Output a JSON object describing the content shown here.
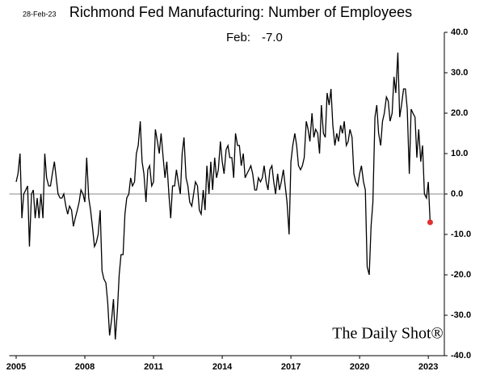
{
  "chart_data": {
    "type": "line",
    "title": "Richmond Fed Manufacturing: Number of Employees",
    "date_label": "28-Feb-23",
    "annotation": {
      "label": "Feb:",
      "value": "-7.0"
    },
    "watermark": "The Daily Shot®",
    "color": "#000000",
    "last_point_color": "#e03030",
    "x": [
      2005,
      2005.08,
      2005.17,
      2005.25,
      2005.33,
      2005.42,
      2005.5,
      2005.58,
      2005.67,
      2005.75,
      2005.83,
      2005.92,
      2006,
      2006.08,
      2006.17,
      2006.25,
      2006.33,
      2006.42,
      2006.5,
      2006.58,
      2006.67,
      2006.75,
      2006.83,
      2006.92,
      2007,
      2007.08,
      2007.17,
      2007.25,
      2007.33,
      2007.42,
      2007.5,
      2007.58,
      2007.67,
      2007.75,
      2007.83,
      2007.92,
      2008,
      2008.08,
      2008.17,
      2008.25,
      2008.33,
      2008.42,
      2008.5,
      2008.58,
      2008.67,
      2008.75,
      2008.83,
      2008.92,
      2009,
      2009.08,
      2009.17,
      2009.25,
      2009.33,
      2009.42,
      2009.5,
      2009.58,
      2009.67,
      2009.75,
      2009.83,
      2009.92,
      2010,
      2010.08,
      2010.17,
      2010.25,
      2010.33,
      2010.42,
      2010.5,
      2010.58,
      2010.67,
      2010.75,
      2010.83,
      2010.92,
      2011,
      2011.08,
      2011.17,
      2011.25,
      2011.33,
      2011.42,
      2011.5,
      2011.58,
      2011.67,
      2011.75,
      2011.83,
      2011.92,
      2012,
      2012.08,
      2012.17,
      2012.25,
      2012.33,
      2012.42,
      2012.5,
      2012.58,
      2012.67,
      2012.75,
      2012.83,
      2012.92,
      2013,
      2013.08,
      2013.17,
      2013.25,
      2013.33,
      2013.42,
      2013.5,
      2013.58,
      2013.67,
      2013.75,
      2013.83,
      2013.92,
      2014,
      2014.08,
      2014.17,
      2014.25,
      2014.33,
      2014.42,
      2014.5,
      2014.58,
      2014.67,
      2014.75,
      2014.83,
      2014.92,
      2015,
      2015.08,
      2015.17,
      2015.25,
      2015.33,
      2015.42,
      2015.5,
      2015.58,
      2015.67,
      2015.75,
      2015.83,
      2015.92,
      2016,
      2016.08,
      2016.17,
      2016.25,
      2016.33,
      2016.42,
      2016.5,
      2016.58,
      2016.67,
      2016.75,
      2016.83,
      2016.92,
      2017,
      2017.08,
      2017.17,
      2017.25,
      2017.33,
      2017.42,
      2017.5,
      2017.58,
      2017.67,
      2017.75,
      2017.83,
      2017.92,
      2018,
      2018.08,
      2018.17,
      2018.25,
      2018.33,
      2018.42,
      2018.5,
      2018.58,
      2018.67,
      2018.75,
      2018.83,
      2018.92,
      2019,
      2019.08,
      2019.17,
      2019.25,
      2019.33,
      2019.42,
      2019.5,
      2019.58,
      2019.67,
      2019.75,
      2019.83,
      2019.92,
      2020,
      2020.08,
      2020.17,
      2020.25,
      2020.33,
      2020.42,
      2020.5,
      2020.58,
      2020.67,
      2020.75,
      2020.83,
      2020.92,
      2021,
      2021.08,
      2021.17,
      2021.25,
      2021.33,
      2021.42,
      2021.5,
      2021.58,
      2021.67,
      2021.75,
      2021.83,
      2021.92,
      2022,
      2022.08,
      2022.17,
      2022.25,
      2022.33,
      2022.42,
      2022.5,
      2022.58,
      2022.67,
      2022.75,
      2022.83,
      2022.92,
      2023,
      2023.08
    ],
    "values": [
      3,
      5,
      10,
      -6,
      0,
      1,
      2,
      -13,
      0,
      1,
      -6,
      -1,
      -6,
      0,
      -6,
      10,
      4,
      2,
      2,
      5,
      8,
      4,
      0,
      -1,
      -1,
      0,
      -3,
      -5,
      -3,
      -4,
      -8,
      -6,
      -4,
      -2,
      1,
      0,
      -2,
      9,
      -1,
      -4,
      -8,
      -13,
      -12,
      -10,
      -4,
      -19,
      -21,
      -22,
      -27,
      -35,
      -31,
      -26,
      -36,
      -29,
      -20,
      -15,
      -15,
      -5,
      -1,
      0,
      4,
      2,
      3,
      10,
      12,
      18,
      8,
      5,
      -2,
      6,
      7,
      2,
      3,
      16,
      13,
      10,
      15,
      9,
      4,
      8,
      0,
      -6,
      2,
      2,
      6,
      3,
      0,
      10,
      14,
      4,
      2,
      -2,
      -3,
      0,
      3,
      2,
      -4,
      -5,
      1,
      -4,
      7,
      0,
      8,
      1,
      9,
      4,
      6,
      13,
      8,
      5,
      11,
      12,
      9,
      9,
      4,
      15,
      12,
      12,
      7,
      10,
      4,
      5,
      6,
      7,
      5,
      1,
      1,
      4,
      3,
      4,
      7,
      3,
      1,
      6,
      7,
      3,
      0,
      5,
      1,
      3,
      6,
      2,
      -2,
      -10,
      8,
      12,
      15,
      12,
      7,
      6,
      7,
      9,
      18,
      16,
      13,
      20,
      14,
      16,
      15,
      10,
      22,
      15,
      14,
      25,
      22,
      26,
      17,
      12,
      15,
      13,
      17,
      15,
      18,
      12,
      13,
      16,
      14,
      5,
      3,
      2,
      5,
      7,
      3,
      1,
      -18,
      -20,
      -8,
      -2,
      19,
      22,
      15,
      12,
      18,
      20,
      24,
      23,
      18,
      20,
      29,
      25,
      35,
      19,
      22,
      26,
      26,
      21,
      5,
      21,
      20,
      19,
      9,
      16,
      8,
      12,
      0,
      -1,
      3,
      -7
    ],
    "xlim": [
      2004.7,
      2023.7
    ],
    "xticks": [
      2005,
      2008,
      2011,
      2014,
      2017,
      2020,
      2023
    ],
    "ylim": [
      -40,
      40
    ],
    "yticks": [
      {
        "value": 40,
        "label": "40.0"
      },
      {
        "value": 30,
        "label": "30.0"
      },
      {
        "value": 20,
        "label": "20.0"
      },
      {
        "value": 10,
        "label": "10.0"
      },
      {
        "value": 0,
        "label": "0.0"
      },
      {
        "value": -10,
        "label": "-10.0"
      },
      {
        "value": -20,
        "label": "-20.0"
      },
      {
        "value": -30,
        "label": "-30.0"
      },
      {
        "value": -40,
        "label": "-40.0"
      }
    ],
    "zero_line": true
  }
}
